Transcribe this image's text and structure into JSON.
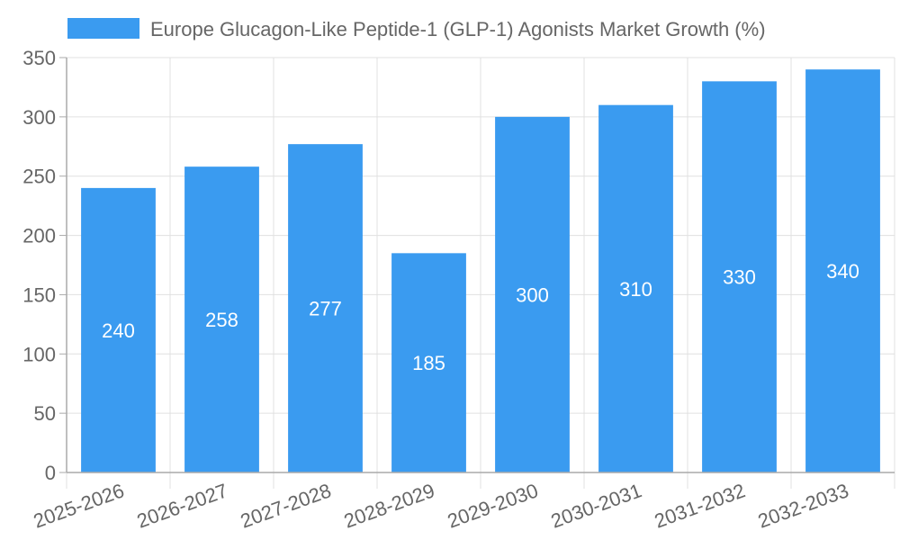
{
  "chart_data": {
    "type": "bar",
    "title": "",
    "legend": {
      "label": "Europe Glucagon-Like Peptide-1 (GLP-1) Agonists Market Growth (%)",
      "position": "top"
    },
    "categories": [
      "2025-2026",
      "2026-2027",
      "2027-2028",
      "2028-2029",
      "2029-2030",
      "2030-2031",
      "2031-2032",
      "2032-2033"
    ],
    "series": [
      {
        "name": "Europe Glucagon-Like Peptide-1 (GLP-1) Agonists Market Growth (%)",
        "values": [
          240,
          258,
          277,
          185,
          300,
          310,
          330,
          340
        ]
      }
    ],
    "yticks": [
      "0",
      "50",
      "100",
      "150",
      "200",
      "250",
      "300",
      "350"
    ],
    "ylim": [
      0,
      350
    ],
    "xlabel": "",
    "ylabel": "",
    "grid": true,
    "colors": {
      "bar": "#3a9bf0",
      "grid": "#e0e0e0",
      "axis": "#aaaaaa",
      "text": "#666666",
      "label": "#ffffff"
    }
  }
}
